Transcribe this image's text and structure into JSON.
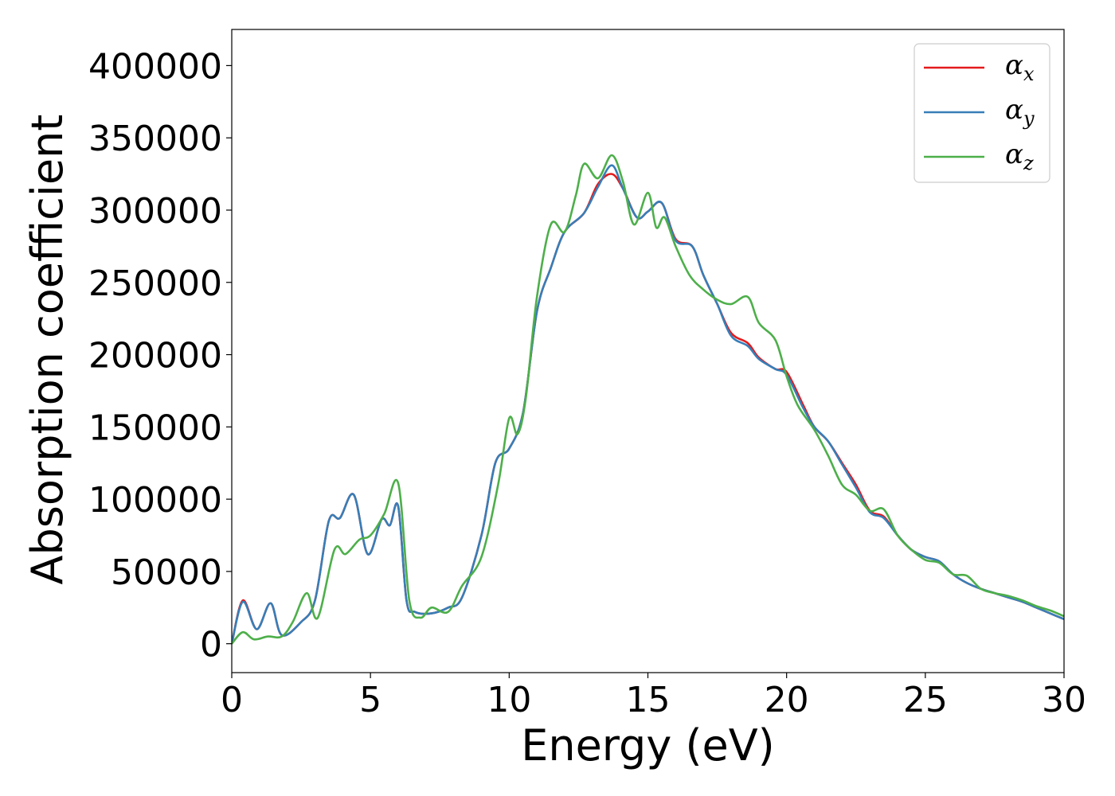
{
  "chart_data": {
    "type": "line",
    "title": "",
    "xlabel": "Energy (eV)",
    "ylabel": "Absorption coefficient",
    "xlim": [
      0,
      30
    ],
    "ylim": [
      -20000,
      425000
    ],
    "xticks": [
      0,
      5,
      10,
      15,
      20,
      25,
      30
    ],
    "yticks": [
      0,
      50000,
      100000,
      150000,
      200000,
      250000,
      300000,
      350000,
      400000
    ],
    "grid": false,
    "legend_position": "top-right",
    "series": [
      {
        "name": "α_x",
        "label_main": "α",
        "label_sub": "x",
        "color": "#e41a1c",
        "x": [
          0,
          0.4,
          0.9,
          1.4,
          1.8,
          2.5,
          3.0,
          3.5,
          3.9,
          4.4,
          4.9,
          5.4,
          5.7,
          6.0,
          6.3,
          6.6,
          7.2,
          7.8,
          8.3,
          9.0,
          9.5,
          10.0,
          10.5,
          11.0,
          11.5,
          12.0,
          12.7,
          13.2,
          13.7,
          14.1,
          14.6,
          15.0,
          15.5,
          16.0,
          16.6,
          17.0,
          17.5,
          18.0,
          18.6,
          19.0,
          19.6,
          20.0,
          20.6,
          21.0,
          21.5,
          22.0,
          22.5,
          23.0,
          23.5,
          24.0,
          24.5,
          25.0,
          25.5,
          26.0,
          26.5,
          27.0,
          27.5,
          28.0,
          28.5,
          29.0,
          29.5,
          30.0
        ],
        "values": [
          0,
          30000,
          10000,
          28000,
          6000,
          15000,
          30000,
          85000,
          87000,
          103000,
          62000,
          86000,
          82000,
          95000,
          30000,
          22000,
          21000,
          25000,
          32000,
          75000,
          125000,
          135000,
          160000,
          230000,
          260000,
          285000,
          298000,
          318000,
          325000,
          315000,
          295000,
          299000,
          305000,
          280000,
          275000,
          255000,
          235000,
          215000,
          208000,
          198000,
          190000,
          188000,
          165000,
          150000,
          140000,
          125000,
          110000,
          92000,
          88000,
          75000,
          65000,
          60000,
          57000,
          48000,
          42000,
          38000,
          35000,
          32000,
          29000,
          25000,
          21000,
          17000
        ]
      },
      {
        "name": "α_y",
        "label_main": "α",
        "label_sub": "y",
        "color": "#377eb8",
        "x": [
          0,
          0.4,
          0.9,
          1.4,
          1.8,
          2.5,
          3.0,
          3.5,
          3.9,
          4.4,
          4.9,
          5.4,
          5.7,
          6.0,
          6.3,
          6.6,
          7.2,
          7.8,
          8.3,
          9.0,
          9.5,
          10.0,
          10.5,
          11.0,
          11.5,
          12.0,
          12.7,
          13.2,
          13.7,
          14.1,
          14.6,
          15.0,
          15.5,
          16.0,
          16.6,
          17.0,
          17.5,
          18.0,
          18.6,
          19.0,
          19.6,
          20.0,
          20.6,
          21.0,
          21.5,
          22.0,
          22.5,
          23.0,
          23.5,
          24.0,
          24.5,
          25.0,
          25.5,
          26.0,
          26.5,
          27.0,
          27.5,
          28.0,
          28.5,
          29.0,
          29.5,
          30.0
        ],
        "values": [
          0,
          29000,
          10000,
          28000,
          6000,
          15000,
          30000,
          85000,
          87000,
          103000,
          62000,
          86000,
          82000,
          95000,
          30000,
          22000,
          21000,
          25000,
          32000,
          75000,
          125000,
          135000,
          160000,
          230000,
          260000,
          285000,
          298000,
          316000,
          331000,
          315000,
          295000,
          299000,
          305000,
          279000,
          275000,
          255000,
          235000,
          213000,
          206000,
          197000,
          190000,
          186000,
          163000,
          150000,
          140000,
          124000,
          108000,
          91000,
          87000,
          75000,
          65000,
          60000,
          57000,
          48000,
          42000,
          38000,
          35000,
          32000,
          29000,
          25000,
          21000,
          17000
        ]
      },
      {
        "name": "α_z",
        "label_main": "α",
        "label_sub": "z",
        "color": "#4daf4a",
        "x": [
          0,
          0.4,
          0.8,
          1.3,
          1.8,
          2.2,
          2.7,
          3.1,
          3.7,
          4.1,
          4.6,
          5.0,
          5.5,
          6.0,
          6.4,
          6.8,
          7.2,
          7.8,
          8.3,
          9.0,
          9.6,
          10.0,
          10.3,
          10.6,
          11.0,
          11.5,
          12.0,
          12.4,
          12.7,
          13.2,
          13.7,
          14.1,
          14.5,
          15.0,
          15.3,
          15.6,
          16.0,
          16.5,
          17.0,
          17.5,
          18.0,
          18.6,
          19.0,
          19.6,
          20.0,
          20.4,
          21.0,
          21.5,
          22.0,
          22.5,
          23.0,
          23.5,
          24.0,
          24.5,
          25.0,
          25.5,
          26.0,
          26.5,
          27.0,
          27.5,
          28.0,
          28.5,
          29.0,
          29.5,
          30.0
        ],
        "values": [
          0,
          8000,
          3000,
          5000,
          5000,
          15000,
          35000,
          18000,
          65000,
          62000,
          72000,
          75000,
          90000,
          111000,
          30000,
          18000,
          25000,
          22000,
          40000,
          60000,
          110000,
          156000,
          145000,
          170000,
          240000,
          290000,
          285000,
          310000,
          332000,
          322000,
          338000,
          320000,
          290000,
          312000,
          288000,
          295000,
          275000,
          255000,
          245000,
          238000,
          235000,
          240000,
          222000,
          210000,
          185000,
          165000,
          148000,
          130000,
          110000,
          103000,
          92000,
          93000,
          75000,
          65000,
          58000,
          56000,
          48000,
          47000,
          38000,
          35000,
          33000,
          30000,
          26000,
          23000,
          19000
        ]
      }
    ]
  }
}
